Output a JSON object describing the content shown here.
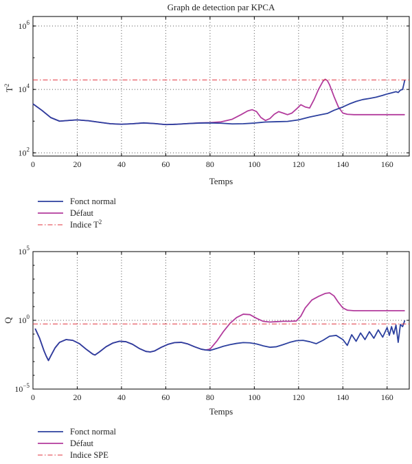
{
  "chart_data": [
    {
      "type": "line",
      "title": "Graph de detection par KPCA",
      "xlabel": "Temps",
      "ylabel": "T",
      "ylabel_sup": "2",
      "xlim": [
        0,
        170
      ],
      "ylim_log10": [
        1.9,
        6.3
      ],
      "yscale": "log",
      "grid": true,
      "legend_position": "below",
      "x_ticks": [
        "0",
        "20",
        "40",
        "60",
        "80",
        "100",
        "120",
        "140",
        "160"
      ],
      "y_ticks": [
        {
          "base": "10",
          "exp": "2",
          "log10": 2
        },
        {
          "base": "10",
          "exp": "4",
          "log10": 4
        },
        {
          "base": "10",
          "exp": "6",
          "log10": 6
        }
      ],
      "series": [
        {
          "name": "Fonct normal",
          "color": "#2b3f9e",
          "style": "solid",
          "x": [
            0,
            4,
            8,
            12,
            16,
            20,
            25,
            30,
            35,
            40,
            45,
            50,
            55,
            60,
            65,
            70,
            75,
            80,
            85,
            90,
            95,
            100,
            105,
            110,
            115,
            120,
            125,
            130,
            133,
            136,
            140,
            143,
            146,
            149,
            152,
            155,
            158,
            160,
            162,
            164,
            165,
            166,
            167,
            168
          ],
          "y": [
            3500,
            2200,
            1300,
            1000,
            1050,
            1100,
            1030,
            920,
            830,
            800,
            830,
            880,
            840,
            780,
            800,
            840,
            870,
            880,
            860,
            820,
            830,
            870,
            940,
            960,
            980,
            1100,
            1350,
            1600,
            1750,
            2200,
            2800,
            3500,
            4200,
            4800,
            5200,
            5700,
            6500,
            7200,
            7800,
            8500,
            8000,
            9500,
            10000,
            20000
          ]
        },
        {
          "name": "Défaut",
          "color": "#b23a9c",
          "style": "solid",
          "x": [
            0,
            4,
            8,
            12,
            16,
            20,
            25,
            30,
            35,
            40,
            45,
            50,
            55,
            60,
            65,
            70,
            75,
            80,
            85,
            90,
            94,
            97,
            99,
            101,
            103,
            105,
            107,
            109,
            111,
            113,
            115,
            117,
            119,
            121,
            123,
            125,
            127,
            129,
            131,
            132,
            133,
            134,
            136,
            138,
            140,
            142,
            145,
            150,
            155,
            160,
            165,
            168
          ],
          "y": [
            3500,
            2200,
            1300,
            1000,
            1050,
            1100,
            1030,
            920,
            830,
            800,
            830,
            880,
            840,
            780,
            800,
            840,
            880,
            900,
            950,
            1150,
            1600,
            2100,
            2300,
            2000,
            1300,
            1050,
            1200,
            1650,
            2000,
            1800,
            1600,
            1800,
            2400,
            3300,
            2800,
            2600,
            4800,
            10000,
            18000,
            21000,
            19000,
            14000,
            6000,
            2800,
            1800,
            1650,
            1600,
            1600,
            1600,
            1600,
            1600,
            1600
          ]
        },
        {
          "name": "Indice T",
          "name_sup": "2",
          "color": "#e0303b",
          "style": "dashdot",
          "x": [
            0,
            170
          ],
          "y": [
            20000,
            20000
          ]
        }
      ]
    },
    {
      "type": "line",
      "title": "",
      "xlabel": "Temps",
      "ylabel": "Q",
      "xlim": [
        0,
        170
      ],
      "ylim_log10": [
        -5,
        5
      ],
      "yscale": "log",
      "grid": true,
      "legend_position": "below",
      "x_ticks": [
        "0",
        "20",
        "40",
        "60",
        "80",
        "100",
        "120",
        "140",
        "160"
      ],
      "y_ticks": [
        {
          "base": "10",
          "exp": "−5",
          "log10": -5
        },
        {
          "base": "10",
          "exp": "0",
          "log10": 0
        },
        {
          "base": "10",
          "exp": "5",
          "log10": 5
        }
      ],
      "series": [
        {
          "name": "Fonct normal",
          "color": "#2b3f9e",
          "style": "solid",
          "x": [
            1,
            3,
            5,
            6,
            7,
            8,
            10,
            12,
            15,
            18,
            21,
            24,
            27,
            28,
            30,
            33,
            36,
            39,
            42,
            45,
            48,
            51,
            53,
            55,
            58,
            61,
            64,
            67,
            70,
            73,
            76,
            78,
            80,
            83,
            86,
            89,
            92,
            95,
            98,
            101,
            104,
            107,
            110,
            113,
            116,
            119,
            122,
            125,
            128,
            131,
            134,
            137,
            140,
            142,
            144,
            146,
            148,
            150,
            152,
            154,
            156,
            158,
            160,
            161,
            162,
            163,
            164,
            165,
            166,
            167,
            168
          ],
          "y": [
            0.25,
            0.05,
            0.006,
            0.0025,
            0.0012,
            0.0025,
            0.01,
            0.025,
            0.04,
            0.035,
            0.02,
            0.008,
            0.0035,
            0.003,
            0.005,
            0.012,
            0.022,
            0.03,
            0.028,
            0.018,
            0.009,
            0.0055,
            0.005,
            0.006,
            0.011,
            0.018,
            0.024,
            0.025,
            0.019,
            0.012,
            0.008,
            0.007,
            0.0065,
            0.009,
            0.013,
            0.017,
            0.021,
            0.024,
            0.023,
            0.019,
            0.014,
            0.011,
            0.012,
            0.017,
            0.025,
            0.033,
            0.035,
            0.028,
            0.02,
            0.035,
            0.07,
            0.08,
            0.04,
            0.015,
            0.09,
            0.03,
            0.12,
            0.04,
            0.15,
            0.05,
            0.2,
            0.06,
            0.3,
            0.08,
            0.35,
            0.1,
            0.45,
            0.025,
            0.5,
            0.35,
            1.0
          ]
        },
        {
          "name": "Défaut",
          "color": "#b23a9c",
          "style": "solid",
          "x": [
            1,
            3,
            5,
            6,
            7,
            8,
            10,
            12,
            15,
            18,
            21,
            24,
            27,
            28,
            30,
            33,
            36,
            39,
            42,
            45,
            48,
            51,
            53,
            55,
            58,
            61,
            64,
            67,
            70,
            73,
            76,
            78,
            80,
            83,
            86,
            89,
            92,
            95,
            98,
            101,
            104,
            107,
            110,
            113,
            116,
            119,
            121,
            123,
            126,
            129,
            132,
            134,
            136,
            138,
            140,
            142,
            145,
            150,
            155,
            160,
            165,
            168
          ],
          "y": [
            0.25,
            0.05,
            0.006,
            0.0025,
            0.0012,
            0.0025,
            0.01,
            0.025,
            0.04,
            0.035,
            0.02,
            0.008,
            0.0035,
            0.003,
            0.005,
            0.012,
            0.022,
            0.03,
            0.028,
            0.018,
            0.009,
            0.0055,
            0.005,
            0.006,
            0.011,
            0.018,
            0.024,
            0.025,
            0.019,
            0.012,
            0.008,
            0.007,
            0.008,
            0.03,
            0.15,
            0.6,
            1.6,
            2.8,
            2.6,
            1.4,
            0.85,
            0.75,
            0.8,
            0.85,
            0.85,
            0.9,
            2.0,
            8.0,
            30.0,
            55.0,
            90.0,
            100.0,
            60.0,
            20.0,
            8.0,
            5.5,
            5.0,
            5.0,
            5.0,
            5.0,
            5.0,
            5.0
          ]
        },
        {
          "name": "Indice SPE",
          "color": "#e0303b",
          "style": "dashdot",
          "x": [
            0,
            170
          ],
          "y": [
            0.55,
            0.55
          ]
        }
      ]
    }
  ]
}
